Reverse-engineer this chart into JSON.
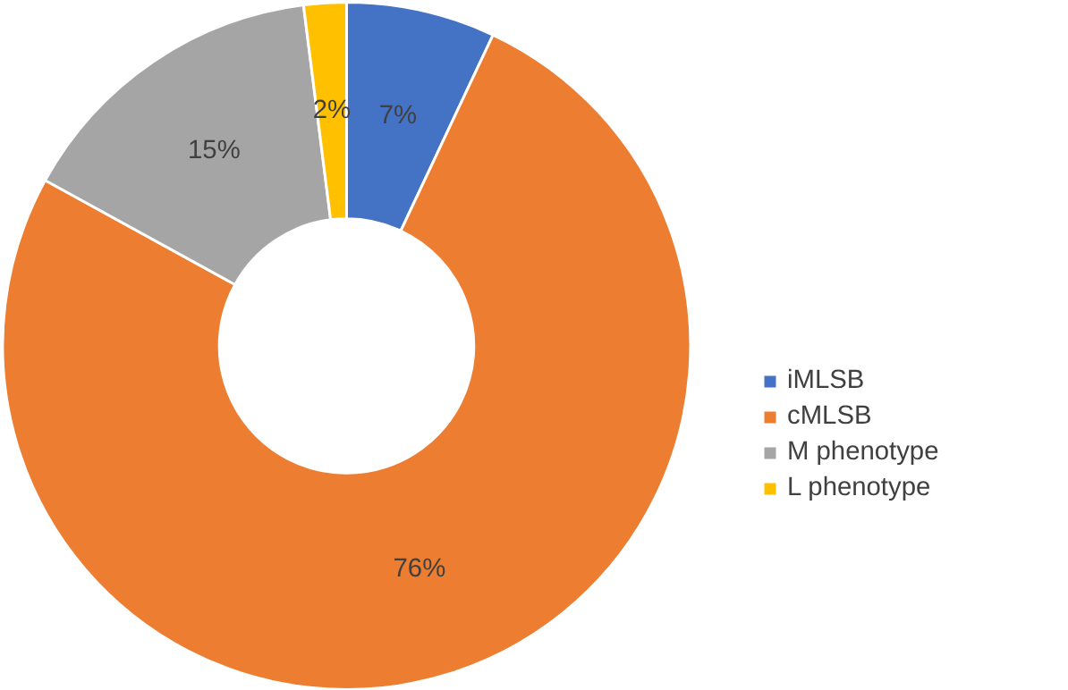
{
  "chart_data": {
    "type": "donut",
    "categories": [
      "iMLSB",
      "cMLSB",
      "M phenotype",
      "L phenotype"
    ],
    "values": [
      7,
      76,
      15,
      2
    ],
    "colors": [
      "#4472c4",
      "#ed7d31",
      "#a5a5a5",
      "#ffc000"
    ],
    "value_labels": [
      "7%",
      "76%",
      "15%",
      "2%"
    ],
    "legend": "right"
  }
}
